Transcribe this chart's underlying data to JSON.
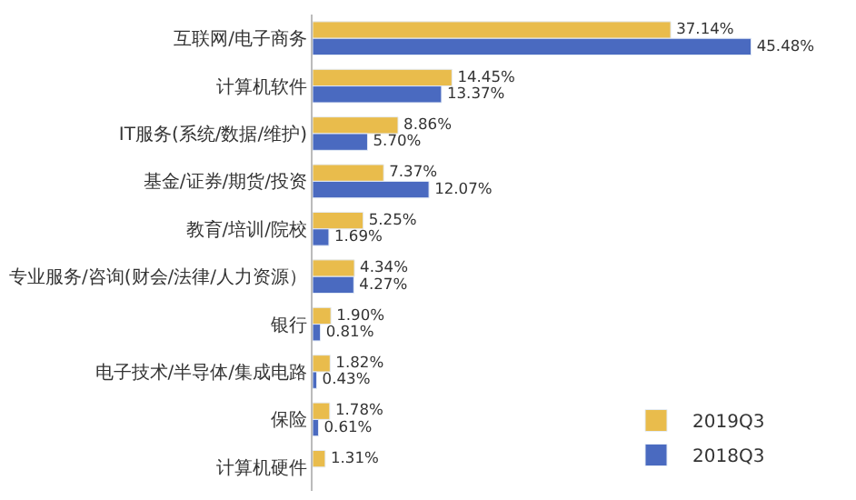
{
  "chart_data": {
    "type": "bar",
    "orientation": "horizontal",
    "legend": "bottom right",
    "categories": [
      "互联网/电子商务",
      "计算机软件",
      "IT服务(系统/数据/维护)",
      "基金/证券/期货/投资",
      "教育/培训/院校",
      "专业服务/咨询(财会/法律/人力资源）",
      "银行",
      "电子技术/半导体/集成电路",
      "保险",
      "计算机硬件"
    ],
    "series": [
      {
        "name": "2019Q3",
        "color": "#e9bc4c",
        "values": [
          37.14,
          14.45,
          8.86,
          7.37,
          5.25,
          4.34,
          1.9,
          1.82,
          1.78,
          1.31
        ],
        "value_labels": [
          "37.14%",
          "14.45%",
          "8.86%",
          "7.37%",
          "5.25%",
          "4.34%",
          "1.90%",
          "1.82%",
          "1.78%",
          "1.31%"
        ]
      },
      {
        "name": "2018Q3",
        "color": "#4a6ac0",
        "values": [
          45.48,
          13.37,
          5.7,
          12.07,
          1.69,
          4.27,
          0.81,
          0.43,
          0.61,
          null
        ],
        "value_labels": [
          "45.48%",
          "13.37%",
          "5.70%",
          "12.07%",
          "1.69%",
          "4.27%",
          "0.81%",
          "0.43%",
          "0.61%",
          null
        ]
      }
    ]
  }
}
